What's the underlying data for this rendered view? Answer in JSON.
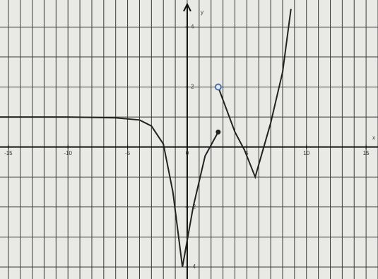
{
  "chart_data": {
    "type": "line",
    "x_label": "x",
    "y_label": "y",
    "x": [
      -15.7,
      -10,
      -6,
      -4,
      -3,
      -2,
      -1.2,
      -0.4,
      0.5,
      1.5,
      2.6,
      2.65,
      2.6,
      4,
      4.8,
      5.7,
      7,
      8,
      8.7
    ],
    "values": [
      1,
      1,
      0.97,
      0.9,
      0.7,
      0.1,
      -1.5,
      -4,
      -2,
      -0.3,
      0.5,
      null,
      2,
      0.5,
      -0.1,
      -1,
      0.8,
      2.5,
      4.6
    ],
    "color": "#222222",
    "xlim": [
      -15.7,
      16
    ],
    "ylim": [
      -4.4,
      4.9
    ],
    "xticks": [
      -15,
      -10,
      -5,
      0,
      5,
      10,
      15
    ],
    "yticks": [
      -4,
      -2,
      2,
      4
    ],
    "grid": true
  }
}
